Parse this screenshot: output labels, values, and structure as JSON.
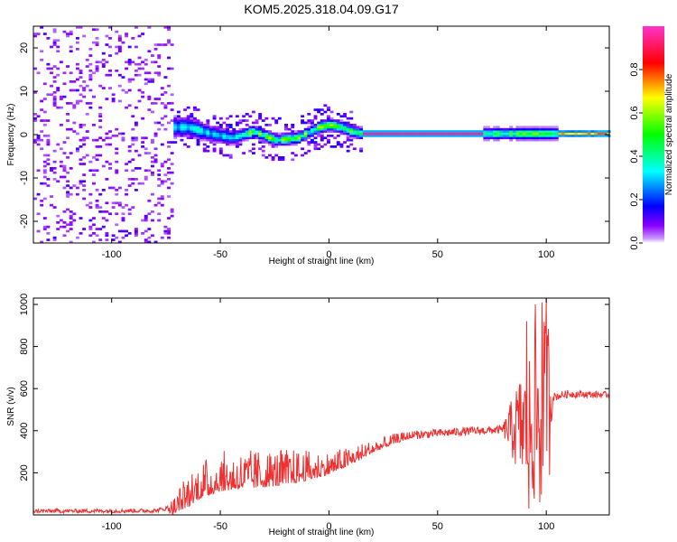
{
  "title": "KOM5.2025.318.04.09.G17",
  "colors": {
    "snr_line": "#ee3030",
    "frame": "#000000",
    "background": "#ffffff"
  },
  "chart_data": [
    {
      "name": "spectrogram",
      "type": "heatmap",
      "xlabel": "Height of straight line (km)",
      "ylabel": "Frequency (Hz)",
      "xlim": [
        -136,
        129
      ],
      "ylim": [
        -25,
        25
      ],
      "xticks": [
        -100,
        -50,
        0,
        50,
        100
      ],
      "yticks": [
        -20,
        -10,
        0,
        10,
        20
      ],
      "ridge": [
        {
          "x": -65,
          "f": 1.5
        },
        {
          "x": -55,
          "f": 0.0
        },
        {
          "x": -45,
          "f": -1.0
        },
        {
          "x": -35,
          "f": 0.5
        },
        {
          "x": -25,
          "f": -1.5
        },
        {
          "x": -15,
          "f": -1.0
        },
        {
          "x": -5,
          "f": 1.5
        },
        {
          "x": 0,
          "f": 2.0
        },
        {
          "x": 5,
          "f": 1.5
        },
        {
          "x": 10,
          "f": 0.5
        },
        {
          "x": 15,
          "f": 0.0
        },
        {
          "x": 129,
          "f": 0.0
        }
      ],
      "colorbar": {
        "label": "Normalized spectral amplitude",
        "range": [
          0.0,
          1.0
        ],
        "ticks": [
          0.0,
          0.2,
          0.4,
          0.6,
          0.8
        ],
        "tick_labels": [
          "0.0",
          "0.2",
          "0.4",
          "0.6",
          "0.8"
        ]
      }
    },
    {
      "name": "snr",
      "type": "line",
      "xlabel": "Height of straight line (km)",
      "ylabel": "SNR (v/v)",
      "xlim": [
        -136,
        129
      ],
      "ylim": [
        0,
        1030
      ],
      "xticks": [
        -100,
        -50,
        0,
        50,
        100
      ],
      "yticks": [
        200,
        400,
        600,
        800,
        1000
      ],
      "trend": [
        {
          "x": -136,
          "y": 18
        },
        {
          "x": -80,
          "y": 20
        },
        {
          "x": -70,
          "y": 40
        },
        {
          "x": -60,
          "y": 120
        },
        {
          "x": -50,
          "y": 160
        },
        {
          "x": -40,
          "y": 170
        },
        {
          "x": -20,
          "y": 185
        },
        {
          "x": -10,
          "y": 200
        },
        {
          "x": 0,
          "y": 220
        },
        {
          "x": 10,
          "y": 260
        },
        {
          "x": 20,
          "y": 310
        },
        {
          "x": 30,
          "y": 350
        },
        {
          "x": 40,
          "y": 380
        },
        {
          "x": 60,
          "y": 395
        },
        {
          "x": 80,
          "y": 405
        },
        {
          "x": 90,
          "y": 420
        },
        {
          "x": 95,
          "y": 450
        },
        {
          "x": 101,
          "y": 520
        },
        {
          "x": 103,
          "y": 560
        },
        {
          "x": 110,
          "y": 575
        },
        {
          "x": 129,
          "y": 570
        }
      ],
      "noise_amplitude": [
        {
          "x": -136,
          "a": 10
        },
        {
          "x": -75,
          "a": 10
        },
        {
          "x": -65,
          "a": 110
        },
        {
          "x": -50,
          "a": 120
        },
        {
          "x": -20,
          "a": 110
        },
        {
          "x": 0,
          "a": 70
        },
        {
          "x": 20,
          "a": 40
        },
        {
          "x": 40,
          "a": 20
        },
        {
          "x": 80,
          "a": 20
        },
        {
          "x": 86,
          "a": 200
        },
        {
          "x": 95,
          "a": 420
        },
        {
          "x": 101,
          "a": 450
        },
        {
          "x": 103,
          "a": 20
        },
        {
          "x": 129,
          "a": 15
        }
      ],
      "peaks": [
        {
          "x": 91,
          "y": 920
        },
        {
          "x": 95,
          "y": 1000
        },
        {
          "x": 98,
          "y": 1010
        },
        {
          "x": 100,
          "y": 1030
        }
      ],
      "troughs": [
        {
          "x": 92,
          "y": 30
        },
        {
          "x": 97,
          "y": 60
        }
      ]
    }
  ]
}
